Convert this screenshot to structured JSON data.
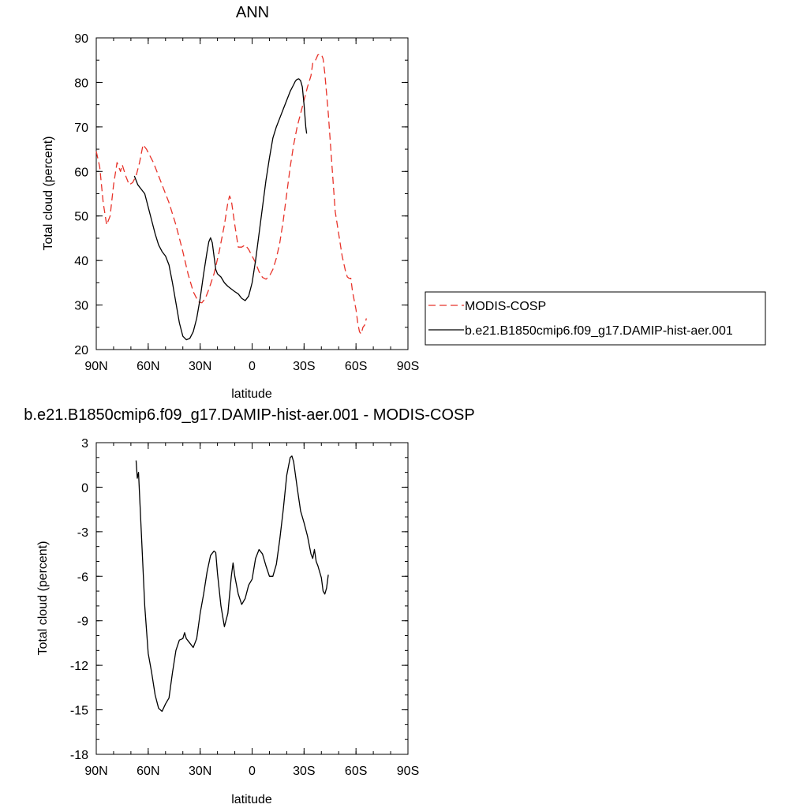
{
  "chart_data": [
    {
      "type": "line",
      "title": "ANN",
      "xlabel": "latitude",
      "ylabel": "Total cloud (percent)",
      "xlim": [
        -90,
        90
      ],
      "ylim": [
        20,
        90
      ],
      "x_ticks": [
        -90,
        -60,
        -30,
        0,
        30,
        60,
        90
      ],
      "x_tick_labels": [
        "90N",
        "60N",
        "30N",
        "0",
        "30S",
        "60S",
        "90S"
      ],
      "y_ticks": [
        20,
        30,
        40,
        50,
        60,
        70,
        80,
        90
      ],
      "y_tick_labels": [
        "20",
        "30",
        "40",
        "50",
        "60",
        "70",
        "80",
        "90"
      ],
      "legend_position": "right",
      "series": [
        {
          "name": "MODIS-COSP",
          "color": "#e8332a",
          "dash": "dashed",
          "points": [
            [
              -90,
              64.5
            ],
            [
              -88,
              61
            ],
            [
              -86,
              53
            ],
            [
              -84,
              48
            ],
            [
              -82,
              50
            ],
            [
              -80,
              57
            ],
            [
              -78,
              62
            ],
            [
              -76,
              60
            ],
            [
              -75,
              61.5
            ],
            [
              -73,
              59
            ],
            [
              -71,
              57
            ],
            [
              -69,
              57.5
            ],
            [
              -67,
              59
            ],
            [
              -65,
              62
            ],
            [
              -63,
              66
            ],
            [
              -61,
              65
            ],
            [
              -59,
              63.5
            ],
            [
              -57,
              62
            ],
            [
              -55,
              60
            ],
            [
              -52,
              57
            ],
            [
              -48,
              53
            ],
            [
              -44,
              48
            ],
            [
              -40,
              42
            ],
            [
              -37,
              37
            ],
            [
              -34,
              33
            ],
            [
              -31,
              30.7
            ],
            [
              -29,
              30.5
            ],
            [
              -27,
              31.5
            ],
            [
              -25,
              33.5
            ],
            [
              -22,
              37
            ],
            [
              -19,
              42
            ],
            [
              -16,
              48
            ],
            [
              -14,
              53
            ],
            [
              -13,
              54.5
            ],
            [
              -12,
              53.5
            ],
            [
              -10,
              48
            ],
            [
              -8,
              43
            ],
            [
              -6,
              43
            ],
            [
              -4,
              43.5
            ],
            [
              -2,
              42.5
            ],
            [
              0,
              41
            ],
            [
              2,
              39.5
            ],
            [
              4,
              37.5
            ],
            [
              6,
              36.2
            ],
            [
              8,
              35.8
            ],
            [
              10,
              36.5
            ],
            [
              12,
              38
            ],
            [
              14,
              40.5
            ],
            [
              16,
              44
            ],
            [
              18,
              49
            ],
            [
              20,
              55
            ],
            [
              22,
              61
            ],
            [
              24,
              66
            ],
            [
              26,
              70
            ],
            [
              28,
              73
            ],
            [
              30,
              76
            ],
            [
              32,
              79
            ],
            [
              34,
              81.5
            ],
            [
              35,
              84.3
            ],
            [
              36,
              84.5
            ],
            [
              37,
              85.3
            ],
            [
              38,
              86.2
            ],
            [
              40,
              86.3
            ],
            [
              41,
              85.3
            ],
            [
              42,
              82
            ],
            [
              44,
              73
            ],
            [
              46,
              62
            ],
            [
              48,
              51
            ],
            [
              50,
              46
            ],
            [
              52,
              41
            ],
            [
              54,
              37.5
            ],
            [
              55,
              36.3
            ],
            [
              56,
              36
            ],
            [
              57,
              36
            ],
            [
              58,
              33
            ],
            [
              60,
              29
            ],
            [
              61,
              26
            ],
            [
              62,
              24
            ],
            [
              63,
              23.5
            ],
            [
              64,
              25
            ],
            [
              65,
              25.5
            ],
            [
              66,
              27
            ]
          ]
        },
        {
          "name": "b.e21.B1850cmip6.f09_g17.DAMIP-hist-aer.001",
          "color": "#000000",
          "dash": "solid",
          "points": [
            [
              -68,
              59
            ],
            [
              -66,
              57
            ],
            [
              -64,
              56
            ],
            [
              -62,
              55
            ],
            [
              -60,
              52
            ],
            [
              -58,
              49
            ],
            [
              -56,
              46
            ],
            [
              -54,
              43.5
            ],
            [
              -52,
              42
            ],
            [
              -50,
              41
            ],
            [
              -48,
              39
            ],
            [
              -46,
              35
            ],
            [
              -44,
              30.5
            ],
            [
              -42,
              26
            ],
            [
              -40,
              23
            ],
            [
              -38,
              22.2
            ],
            [
              -36,
              22.5
            ],
            [
              -34,
              24
            ],
            [
              -32,
              27
            ],
            [
              -30,
              31.5
            ],
            [
              -28,
              37
            ],
            [
              -26,
              42
            ],
            [
              -25,
              44.2
            ],
            [
              -24,
              45.1
            ],
            [
              -23,
              44
            ],
            [
              -22,
              41
            ],
            [
              -21,
              38
            ],
            [
              -20,
              37
            ],
            [
              -18,
              36.3
            ],
            [
              -16,
              35
            ],
            [
              -14,
              34.2
            ],
            [
              -12,
              33.6
            ],
            [
              -10,
              33
            ],
            [
              -8,
              32.5
            ],
            [
              -6,
              31.5
            ],
            [
              -4,
              31
            ],
            [
              -2,
              32
            ],
            [
              0,
              35
            ],
            [
              2,
              40
            ],
            [
              4,
              46
            ],
            [
              6,
              52
            ],
            [
              8,
              58
            ],
            [
              10,
              63
            ],
            [
              12,
              67.5
            ],
            [
              14,
              70
            ],
            [
              16,
              72
            ],
            [
              18,
              74
            ],
            [
              20,
              76
            ],
            [
              22,
              78
            ],
            [
              24,
              79.5
            ],
            [
              25,
              80.3
            ],
            [
              26,
              80.7
            ],
            [
              27,
              80.8
            ],
            [
              28,
              80.4
            ],
            [
              29,
              79
            ],
            [
              30,
              75
            ],
            [
              31,
              70
            ],
            [
              31.5,
              68.5
            ]
          ]
        }
      ]
    },
    {
      "type": "line",
      "title": "b.e21.B1850cmip6.f09_g17.DAMIP-hist-aer.001 - MODIS-COSP",
      "xlabel": "latitude",
      "ylabel": "Total cloud (percent)",
      "xlim": [
        -90,
        90
      ],
      "ylim": [
        -18,
        3
      ],
      "x_ticks": [
        -90,
        -60,
        -30,
        0,
        30,
        60,
        90
      ],
      "x_tick_labels": [
        "90N",
        "60N",
        "30N",
        "0",
        "30S",
        "60S",
        "90S"
      ],
      "y_ticks": [
        -18,
        -15,
        -12,
        -9,
        -6,
        -3,
        0,
        3
      ],
      "y_tick_labels": [
        "-18",
        "-15",
        "-12",
        "-9",
        "-6",
        "-3",
        "0",
        "3"
      ],
      "series": [
        {
          "color": "#000000",
          "dash": "solid",
          "points": [
            [
              -67,
              1.8
            ],
            [
              -66.3,
              0.6
            ],
            [
              -65.6,
              1.0
            ],
            [
              -64,
              -3
            ],
            [
              -62,
              -8
            ],
            [
              -60,
              -11.2
            ],
            [
              -58,
              -12.5
            ],
            [
              -56,
              -14
            ],
            [
              -54,
              -14.9
            ],
            [
              -52,
              -15.1
            ],
            [
              -50,
              -14.6
            ],
            [
              -48,
              -14.2
            ],
            [
              -46,
              -12.5
            ],
            [
              -44,
              -11
            ],
            [
              -42,
              -10.3
            ],
            [
              -40,
              -10.2
            ],
            [
              -39,
              -9.8
            ],
            [
              -38,
              -10.2
            ],
            [
              -36,
              -10.5
            ],
            [
              -34,
              -10.8
            ],
            [
              -32,
              -10.2
            ],
            [
              -30,
              -8.5
            ],
            [
              -28,
              -7.2
            ],
            [
              -26,
              -5.7
            ],
            [
              -24,
              -4.6
            ],
            [
              -22,
              -4.3
            ],
            [
              -21,
              -4.4
            ],
            [
              -20,
              -5.8
            ],
            [
              -18,
              -8
            ],
            [
              -16,
              -9.4
            ],
            [
              -14,
              -8.5
            ],
            [
              -12,
              -6
            ],
            [
              -11,
              -5.1
            ],
            [
              -10,
              -6
            ],
            [
              -8,
              -7.2
            ],
            [
              -6,
              -7.9
            ],
            [
              -4,
              -7.5
            ],
            [
              -2,
              -6.6
            ],
            [
              0,
              -6.2
            ],
            [
              2,
              -4.8
            ],
            [
              4,
              -4.2
            ],
            [
              6,
              -4.5
            ],
            [
              8,
              -5.3
            ],
            [
              10,
              -6
            ],
            [
              12,
              -6
            ],
            [
              14,
              -5.2
            ],
            [
              16,
              -3.5
            ],
            [
              18,
              -1.5
            ],
            [
              20,
              0.8
            ],
            [
              22,
              2
            ],
            [
              23,
              2.1
            ],
            [
              24,
              1.7
            ],
            [
              26,
              0
            ],
            [
              28,
              -1.6
            ],
            [
              30,
              -2.4
            ],
            [
              32,
              -3.3
            ],
            [
              34,
              -4.5
            ],
            [
              35,
              -4.8
            ],
            [
              36,
              -4.2
            ],
            [
              37,
              -5
            ],
            [
              38,
              -5.3
            ],
            [
              40,
              -6.1
            ],
            [
              41,
              -7
            ],
            [
              42,
              -7.2
            ],
            [
              43,
              -6.8
            ],
            [
              44,
              -5.9
            ]
          ]
        }
      ]
    }
  ]
}
